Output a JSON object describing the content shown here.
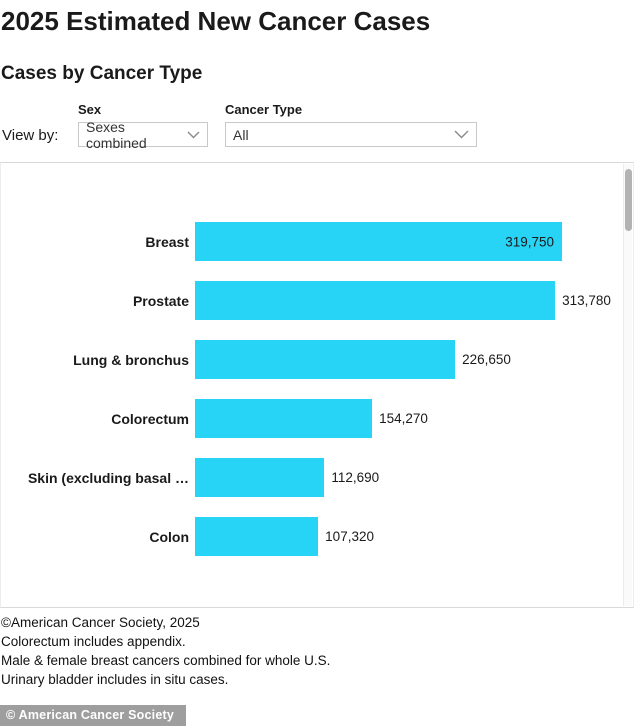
{
  "header": {
    "title": "2025 Estimated New Cancer Cases",
    "subtitle": "Cases by Cancer Type"
  },
  "controls": {
    "view_by_label": "View by:",
    "sex": {
      "label": "Sex",
      "selected": "Sexes combined"
    },
    "cancer_type": {
      "label": "Cancer Type",
      "selected": "All"
    }
  },
  "chart_data": {
    "type": "bar",
    "orientation": "horizontal",
    "bar_color": "#28d4f5",
    "x_axis_visible": false,
    "grid": false,
    "legend": false,
    "categories": [
      "Breast",
      "Prostate",
      "Lung & bronchus",
      "Colorectum",
      "Skin (excluding basal …",
      "Colon"
    ],
    "values": [
      319750,
      313780,
      226650,
      154270,
      112690,
      107320
    ],
    "value_labels": [
      "319,750",
      "313,780",
      "226,650",
      "154,270",
      "112,690",
      "107,320"
    ],
    "value_label_inside": [
      true,
      false,
      false,
      false,
      false,
      false
    ],
    "xlim": [
      0,
      371000
    ]
  },
  "footnotes": [
    "©American Cancer Society, 2025",
    "Colorectum includes appendix.",
    "Male & female breast cancers combined for whole U.S.",
    "Urinary bladder includes in situ cases."
  ],
  "watermark": "© American Cancer Society"
}
